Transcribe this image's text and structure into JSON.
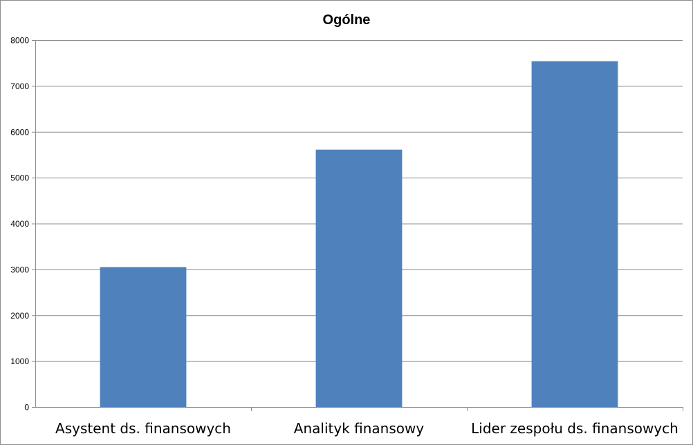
{
  "chart_data": {
    "type": "bar",
    "title": "Ogólne",
    "xlabel": "",
    "ylabel": "",
    "categories": [
      "Asystent ds. finansowych",
      "Analityk finansowy",
      "Lider zespołu ds. finansowych"
    ],
    "values": [
      3050,
      5610,
      7540
    ],
    "ylim": [
      0,
      8000
    ],
    "yticks": [
      0,
      1000,
      2000,
      3000,
      4000,
      5000,
      6000,
      7000,
      8000
    ],
    "grid": true,
    "legend": "none",
    "bar_color": "#4F81BD",
    "grid_color": "#8C8C8C"
  }
}
